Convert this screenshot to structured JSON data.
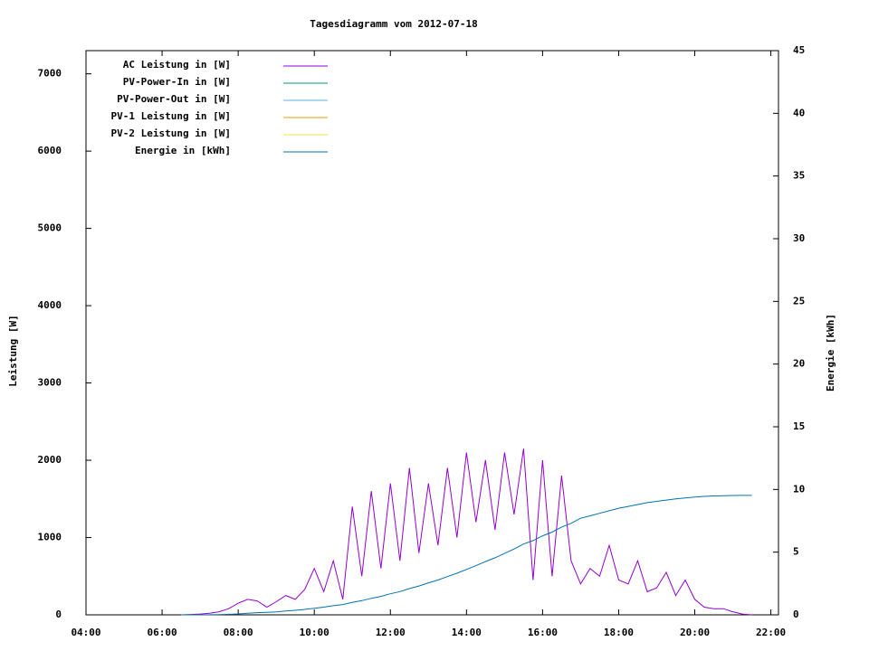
{
  "chart_data": {
    "type": "line",
    "title": "Tagesdiagramm vom 2012-07-18",
    "y_label": "Leistung [W]",
    "y2_label": "Energie [kWh]",
    "xlim": [
      4,
      22.2
    ],
    "ylim": [
      0,
      7300
    ],
    "y2lim": [
      0,
      45
    ],
    "xticks": [
      {
        "value": 4,
        "label": "04:00"
      },
      {
        "value": 6,
        "label": "06:00"
      },
      {
        "value": 8,
        "label": "08:00"
      },
      {
        "value": 10,
        "label": "10:00"
      },
      {
        "value": 12,
        "label": "12:00"
      },
      {
        "value": 14,
        "label": "14:00"
      },
      {
        "value": 16,
        "label": "16:00"
      },
      {
        "value": 18,
        "label": "18:00"
      },
      {
        "value": 20,
        "label": "20:00"
      },
      {
        "value": 22,
        "label": "22:00"
      }
    ],
    "yticks": [
      0,
      1000,
      2000,
      3000,
      4000,
      5000,
      6000,
      7000
    ],
    "y2ticks": [
      0,
      5,
      10,
      15,
      20,
      25,
      30,
      35,
      40,
      45
    ],
    "x": [
      6.5,
      6.75,
      7,
      7.25,
      7.5,
      7.75,
      8,
      8.25,
      8.5,
      8.75,
      9,
      9.25,
      9.5,
      9.75,
      10,
      10.25,
      10.5,
      10.75,
      11,
      11.25,
      11.5,
      11.75,
      12,
      12.25,
      12.5,
      12.75,
      13,
      13.25,
      13.5,
      13.75,
      14,
      14.25,
      14.5,
      14.75,
      15,
      15.25,
      15.5,
      15.75,
      16,
      16.25,
      16.5,
      16.75,
      17,
      17.25,
      17.5,
      17.75,
      18,
      18.25,
      18.5,
      18.75,
      19,
      19.25,
      19.5,
      19.75,
      20,
      20.25,
      20.5,
      20.75,
      21,
      21.25,
      21.5
    ],
    "series": [
      {
        "name": "AC Leistung in [W]",
        "color": "#9400d3",
        "values": [
          0,
          5,
          10,
          20,
          40,
          80,
          150,
          200,
          180,
          100,
          170,
          250,
          200,
          330,
          600,
          300,
          700,
          200,
          1400,
          500,
          1600,
          600,
          1700,
          700,
          1900,
          800,
          1700,
          900,
          1900,
          1000,
          2100,
          1200,
          2000,
          1100,
          2100,
          1300,
          2150,
          450,
          2000,
          500,
          1800,
          700,
          400,
          600,
          500,
          900,
          450,
          400,
          700,
          300,
          350,
          550,
          250,
          450,
          200,
          100,
          80,
          80,
          40,
          10,
          0
        ]
      },
      {
        "name": "PV-Power-In in [W]",
        "color": "#009e73",
        "values": [
          null,
          null,
          null,
          null,
          null,
          null,
          null,
          null,
          null,
          null,
          null,
          null,
          null,
          null,
          null,
          null,
          null,
          null,
          null,
          null,
          null,
          null,
          null,
          null,
          null,
          null,
          null,
          null,
          null,
          null,
          null,
          null,
          null,
          null,
          null,
          null,
          null,
          null,
          null,
          null,
          null,
          null,
          null,
          null,
          null,
          null,
          null,
          null,
          null,
          null,
          null,
          null,
          null,
          null,
          null,
          null,
          null,
          null,
          null,
          null,
          null
        ]
      },
      {
        "name": "PV-Power-Out in [W]",
        "color": "#56b4e9",
        "values": [
          null,
          null,
          null,
          null,
          null,
          null,
          null,
          null,
          null,
          null,
          null,
          null,
          null,
          null,
          null,
          null,
          null,
          null,
          null,
          null,
          null,
          null,
          null,
          null,
          null,
          null,
          null,
          null,
          null,
          null,
          null,
          null,
          null,
          null,
          null,
          null,
          null,
          null,
          null,
          null,
          null,
          null,
          null,
          null,
          null,
          null,
          null,
          null,
          null,
          null,
          null,
          null,
          null,
          null,
          null,
          null,
          null,
          null,
          null,
          null,
          null
        ]
      },
      {
        "name": "PV-1 Leistung in [W]",
        "color": "#e69f00",
        "values": [
          null,
          null,
          null,
          null,
          null,
          null,
          null,
          null,
          null,
          null,
          null,
          null,
          null,
          null,
          null,
          null,
          null,
          null,
          null,
          null,
          null,
          null,
          null,
          null,
          null,
          null,
          null,
          null,
          null,
          null,
          null,
          null,
          null,
          null,
          null,
          null,
          null,
          null,
          null,
          null,
          null,
          null,
          null,
          null,
          null,
          null,
          null,
          null,
          null,
          null,
          null,
          null,
          null,
          null,
          null,
          null,
          null,
          null,
          null,
          null,
          null
        ]
      },
      {
        "name": "PV-2 Leistung in [W]",
        "color": "#f0e442",
        "values": [
          null,
          null,
          null,
          null,
          null,
          null,
          null,
          null,
          null,
          null,
          null,
          null,
          null,
          null,
          null,
          null,
          null,
          null,
          null,
          null,
          null,
          null,
          null,
          null,
          null,
          null,
          null,
          null,
          null,
          null,
          null,
          null,
          null,
          null,
          null,
          null,
          null,
          null,
          null,
          null,
          null,
          null,
          null,
          null,
          null,
          null,
          null,
          null,
          null,
          null,
          null,
          null,
          null,
          null,
          null,
          null,
          null,
          null,
          null,
          null,
          null
        ]
      },
      {
        "name": "Energie in [kWh]",
        "color": "#0072b2",
        "axis": "y2",
        "values": [
          0,
          0,
          0,
          0.01,
          0.02,
          0.04,
          0.07,
          0.12,
          0.17,
          0.2,
          0.24,
          0.3,
          0.36,
          0.43,
          0.52,
          0.61,
          0.73,
          0.82,
          0.99,
          1.13,
          1.32,
          1.47,
          1.68,
          1.85,
          2.09,
          2.3,
          2.55,
          2.78,
          3.05,
          3.32,
          3.62,
          3.92,
          4.25,
          4.55,
          4.9,
          5.25,
          5.65,
          5.92,
          6.3,
          6.6,
          7.0,
          7.3,
          7.7,
          7.9,
          8.1,
          8.3,
          8.5,
          8.65,
          8.8,
          8.95,
          9.05,
          9.15,
          9.25,
          9.32,
          9.4,
          9.45,
          9.48,
          9.5,
          9.52,
          9.53,
          9.53
        ]
      }
    ]
  }
}
